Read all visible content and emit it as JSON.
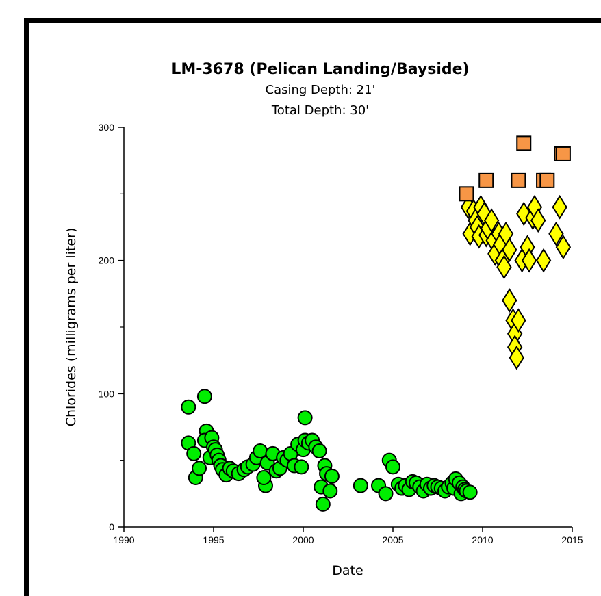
{
  "chart_data": {
    "type": "scatter",
    "title": "LM-3678 (Pelican Landing/Bayside)",
    "subtitle_lines": [
      "Casing Depth:  21'",
      "Total Depth:  30'"
    ],
    "xlabel": "Date",
    "ylabel": "Chlorides (milligrams per liter)",
    "xlim": [
      1990,
      2015
    ],
    "ylim": [
      0,
      300
    ],
    "x_ticks": [
      1990,
      1995,
      2000,
      2005,
      2010,
      2015
    ],
    "x_tick_labels": [
      "1990",
      "1995",
      "2000",
      "2005",
      "2010",
      "2015"
    ],
    "y_ticks": [
      0,
      100,
      200,
      300
    ],
    "y_tick_labels": [
      "0",
      "100",
      "200",
      "300"
    ],
    "y_minor_ticks": [
      50,
      150,
      250
    ],
    "grid": false,
    "legend": "none",
    "series": [
      {
        "marker": "circle",
        "color": "#00ee00",
        "points": [
          [
            1993.6,
            90
          ],
          [
            1993.6,
            63
          ],
          [
            1993.9,
            55
          ],
          [
            1994.0,
            37
          ],
          [
            1994.2,
            44
          ],
          [
            1994.5,
            98
          ],
          [
            1994.6,
            72
          ],
          [
            1994.5,
            65
          ],
          [
            1994.8,
            52
          ],
          [
            1994.9,
            67
          ],
          [
            1995.0,
            60
          ],
          [
            1995.1,
            58
          ],
          [
            1995.2,
            54
          ],
          [
            1995.3,
            50
          ],
          [
            1995.4,
            46
          ],
          [
            1995.5,
            43
          ],
          [
            1995.7,
            39
          ],
          [
            1995.9,
            44
          ],
          [
            1996.1,
            42
          ],
          [
            1996.4,
            40
          ],
          [
            1996.7,
            43
          ],
          [
            1996.9,
            45
          ],
          [
            1997.2,
            47
          ],
          [
            1997.4,
            52
          ],
          [
            1997.6,
            57
          ],
          [
            1997.9,
            31
          ],
          [
            1997.8,
            37
          ],
          [
            1998.0,
            48
          ],
          [
            1998.3,
            55
          ],
          [
            1998.5,
            42
          ],
          [
            1998.7,
            44
          ],
          [
            1998.9,
            52
          ],
          [
            1999.1,
            50
          ],
          [
            1999.3,
            55
          ],
          [
            1999.5,
            46
          ],
          [
            1999.7,
            62
          ],
          [
            1999.9,
            45
          ],
          [
            2000.0,
            58
          ],
          [
            2000.1,
            82
          ],
          [
            2000.1,
            65
          ],
          [
            2000.3,
            63
          ],
          [
            2000.5,
            65
          ],
          [
            2000.7,
            60
          ],
          [
            2000.9,
            57
          ],
          [
            2001.0,
            30
          ],
          [
            2001.1,
            17
          ],
          [
            2001.2,
            46
          ],
          [
            2001.3,
            40
          ],
          [
            2001.5,
            27
          ],
          [
            2001.6,
            38
          ],
          [
            2003.2,
            31
          ],
          [
            2004.2,
            31
          ],
          [
            2004.6,
            25
          ],
          [
            2004.8,
            50
          ],
          [
            2005.0,
            45
          ],
          [
            2005.3,
            32
          ],
          [
            2005.5,
            29
          ],
          [
            2005.7,
            31
          ],
          [
            2005.9,
            28
          ],
          [
            2006.1,
            34
          ],
          [
            2006.3,
            33
          ],
          [
            2006.5,
            30
          ],
          [
            2006.7,
            27
          ],
          [
            2006.9,
            32
          ],
          [
            2007.1,
            29
          ],
          [
            2007.3,
            31
          ],
          [
            2007.5,
            30
          ],
          [
            2007.7,
            29
          ],
          [
            2007.9,
            27
          ],
          [
            2008.1,
            30
          ],
          [
            2008.3,
            33
          ],
          [
            2008.4,
            29
          ],
          [
            2008.5,
            36
          ],
          [
            2008.7,
            33
          ],
          [
            2008.8,
            25
          ],
          [
            2008.9,
            30
          ],
          [
            2009.0,
            28
          ],
          [
            2009.1,
            27
          ],
          [
            2009.3,
            26
          ]
        ]
      },
      {
        "marker": "diamond",
        "color": "#ffff00",
        "points": [
          [
            2009.2,
            240
          ],
          [
            2009.3,
            220
          ],
          [
            2009.5,
            237
          ],
          [
            2009.6,
            230
          ],
          [
            2009.7,
            225
          ],
          [
            2009.8,
            218
          ],
          [
            2009.9,
            240
          ],
          [
            2010.1,
            235
          ],
          [
            2010.2,
            219
          ],
          [
            2010.3,
            224
          ],
          [
            2010.5,
            230
          ],
          [
            2010.6,
            215
          ],
          [
            2010.7,
            205
          ],
          [
            2010.9,
            220
          ],
          [
            2011.0,
            212
          ],
          [
            2011.1,
            200
          ],
          [
            2011.2,
            195
          ],
          [
            2011.3,
            220
          ],
          [
            2011.5,
            208
          ],
          [
            2011.5,
            170
          ],
          [
            2011.7,
            155
          ],
          [
            2011.8,
            145
          ],
          [
            2011.8,
            135
          ],
          [
            2011.9,
            127
          ],
          [
            2012.0,
            155
          ],
          [
            2012.2,
            200
          ],
          [
            2012.3,
            235
          ],
          [
            2012.5,
            210
          ],
          [
            2012.6,
            200
          ],
          [
            2012.8,
            232
          ],
          [
            2012.9,
            240
          ],
          [
            2013.1,
            230
          ],
          [
            2013.4,
            200
          ],
          [
            2014.1,
            220
          ],
          [
            2014.3,
            240
          ],
          [
            2014.5,
            210
          ]
        ]
      },
      {
        "marker": "square",
        "color": "#f79646",
        "points": [
          [
            2009.1,
            250
          ],
          [
            2010.2,
            260
          ],
          [
            2012.0,
            260
          ],
          [
            2012.3,
            288
          ],
          [
            2013.4,
            260
          ],
          [
            2013.6,
            260
          ],
          [
            2014.4,
            280
          ],
          [
            2014.5,
            280
          ]
        ]
      }
    ]
  }
}
